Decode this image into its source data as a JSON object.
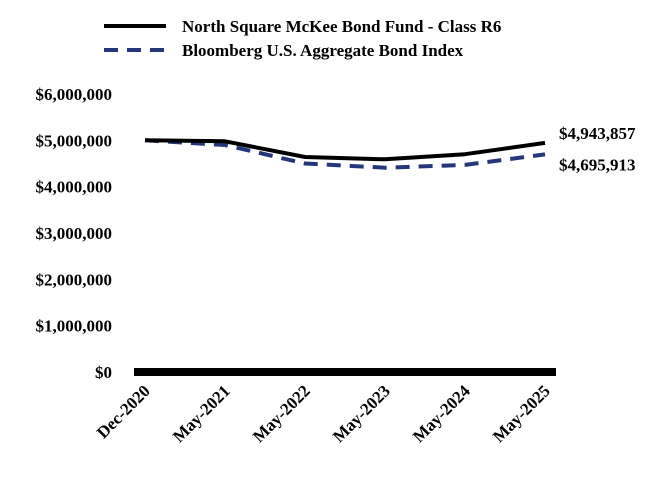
{
  "chart_data": {
    "type": "line",
    "title": "",
    "xlabel": "",
    "ylabel": "",
    "x": [
      "Dec-2020",
      "May-2021",
      "May-2022",
      "May-2023",
      "May-2024",
      "May-2025"
    ],
    "ylim": [
      0,
      6000000
    ],
    "y_ticks": [
      0,
      1000000,
      2000000,
      3000000,
      4000000,
      5000000,
      6000000
    ],
    "y_tick_labels": [
      "$0",
      "$1,000,000",
      "$2,000,000",
      "$3,000,000",
      "$4,000,000",
      "$5,000,000",
      "$6,000,000"
    ],
    "grid": false,
    "legend_position": "top",
    "series": [
      {
        "name": "North Square McKee Bond Fund - Class R6",
        "values": [
          5000000,
          4980000,
          4640000,
          4590000,
          4700000,
          4943857
        ],
        "color": "#000000",
        "line_style": "solid",
        "end_label": "$4,943,857"
      },
      {
        "name": "Bloomberg U.S. Aggregate Bond Index",
        "values": [
          5000000,
          4900000,
          4500000,
          4410000,
          4470000,
          4695913
        ],
        "color": "#25377a",
        "line_style": "dashed",
        "end_label": "$4,695,913"
      }
    ]
  }
}
